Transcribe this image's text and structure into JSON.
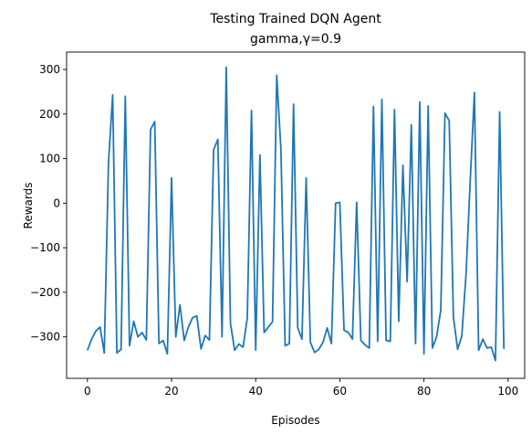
{
  "chart_data": {
    "type": "line",
    "title": "Testing Trained DQN Agent",
    "subtitle": "gamma,γ=0.9",
    "xlabel": "Episodes",
    "ylabel": "Rewards",
    "xlim": [
      -4.95,
      103.95
    ],
    "ylim": [
      -393,
      339
    ],
    "xticks": [
      0,
      20,
      40,
      60,
      80,
      100
    ],
    "yticks": [
      -300,
      -200,
      -100,
      0,
      100,
      200,
      300
    ],
    "grid": false,
    "line_color": "#1f77b4",
    "x": [
      0,
      1,
      2,
      3,
      4,
      5,
      6,
      7,
      8,
      9,
      10,
      11,
      12,
      13,
      14,
      15,
      16,
      17,
      18,
      19,
      20,
      21,
      22,
      23,
      24,
      25,
      26,
      27,
      28,
      29,
      30,
      31,
      32,
      33,
      34,
      35,
      36,
      37,
      38,
      39,
      40,
      41,
      42,
      43,
      44,
      45,
      46,
      47,
      48,
      49,
      50,
      51,
      52,
      53,
      54,
      55,
      56,
      57,
      58,
      59,
      60,
      61,
      62,
      63,
      64,
      65,
      66,
      67,
      68,
      69,
      70,
      71,
      72,
      73,
      74,
      75,
      76,
      77,
      78,
      79,
      80,
      81,
      82,
      83,
      84,
      85,
      86,
      87,
      88,
      89,
      90,
      91,
      92,
      93,
      94,
      95,
      96,
      97,
      98,
      99
    ],
    "series": [
      {
        "values": [
          -330,
          -305,
          -287,
          -278,
          -336,
          90,
          243,
          -336,
          -328,
          240,
          -320,
          -265,
          -300,
          -290,
          -307,
          165,
          183,
          -315,
          -308,
          -338,
          57,
          -300,
          -228,
          -308,
          -278,
          -257,
          -253,
          -327,
          -297,
          -307,
          120,
          143,
          -300,
          305,
          -270,
          -330,
          -316,
          -323,
          -258,
          208,
          -330,
          108,
          -290,
          -278,
          -266,
          287,
          120,
          -320,
          -315,
          222,
          -280,
          -305,
          57,
          -312,
          -335,
          -328,
          -312,
          -280,
          -315,
          0,
          2,
          -285,
          -290,
          -305,
          2,
          -308,
          -318,
          -325,
          217,
          -310,
          233,
          -308,
          -310,
          210,
          -265,
          85,
          -176,
          176,
          -315,
          227,
          -338,
          218,
          -325,
          -300,
          -240,
          202,
          185,
          -255,
          -328,
          -298,
          -160,
          50,
          248,
          -330,
          -305,
          -325,
          -323,
          -353,
          205,
          -327
        ]
      }
    ]
  }
}
